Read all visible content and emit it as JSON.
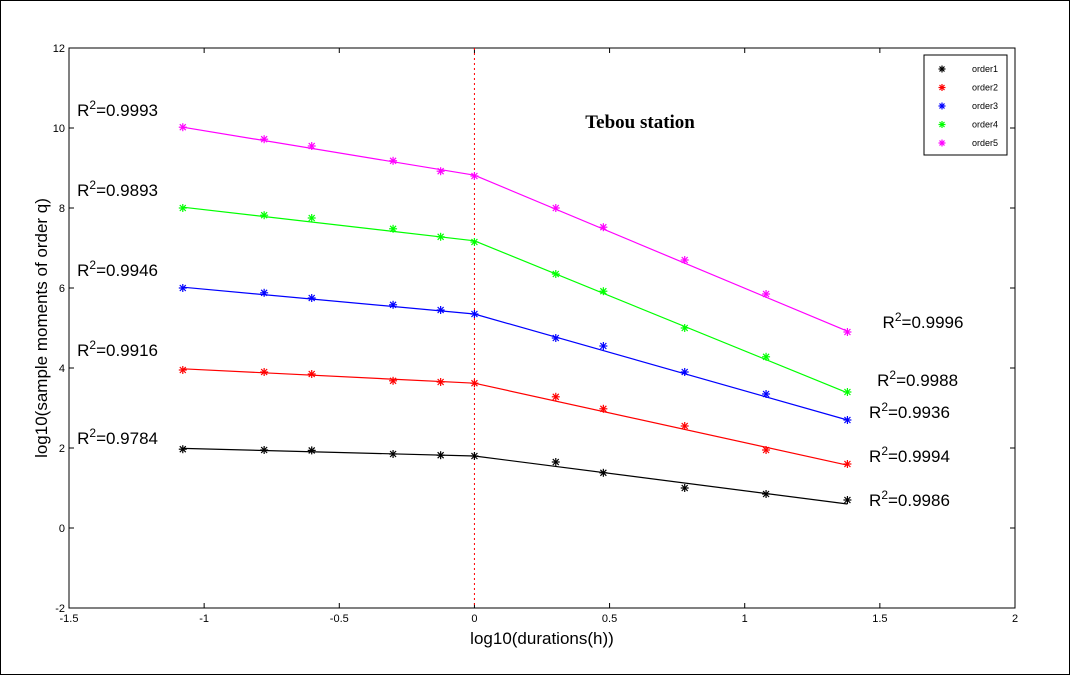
{
  "chart_data": {
    "type": "line",
    "title": "Tebou station",
    "xlabel": "log10(durations(h))",
    "ylabel": "log10(sample moments of order q)",
    "xlim": [
      -1.5,
      2
    ],
    "ylim": [
      -2,
      12
    ],
    "xticks": [
      -1.5,
      -1,
      -0.5,
      0,
      0.5,
      1,
      1.5,
      2
    ],
    "xtick_labels": [
      "-1.5",
      "-1",
      "-0.5",
      "0",
      "0.5",
      "1",
      "1.5",
      "2"
    ],
    "yticks": [
      -2,
      0,
      2,
      4,
      6,
      8,
      10,
      12
    ],
    "ytick_labels": [
      "-2",
      "0",
      "2",
      "4",
      "6",
      "8",
      "10",
      "12"
    ],
    "grid": false,
    "legend_position": "top-right",
    "vertical_reference_line_x": 0,
    "x": [
      -1.079,
      -0.778,
      -0.602,
      -0.301,
      -0.125,
      0,
      0.301,
      0.477,
      0.778,
      1.079,
      1.38
    ],
    "series": [
      {
        "name": "order1",
        "color": "#000000",
        "values": [
          1.97,
          1.95,
          1.94,
          1.85,
          1.82,
          1.8,
          1.65,
          1.38,
          1.0,
          0.85,
          0.7
        ],
        "fit_left": [
          1.99,
          1.8
        ],
        "fit_right": [
          1.8,
          0.6
        ]
      },
      {
        "name": "order2",
        "color": "#ff0000",
        "values": [
          3.95,
          3.9,
          3.85,
          3.68,
          3.65,
          3.62,
          3.28,
          2.98,
          2.55,
          1.95,
          1.6
        ],
        "fit_left": [
          3.98,
          3.62
        ],
        "fit_right": [
          3.62,
          1.57
        ]
      },
      {
        "name": "order3",
        "color": "#0000ff",
        "values": [
          6.0,
          5.88,
          5.75,
          5.58,
          5.45,
          5.35,
          4.75,
          4.55,
          3.9,
          3.35,
          2.7
        ],
        "fit_left": [
          6.02,
          5.35
        ],
        "fit_right": [
          5.35,
          2.7
        ]
      },
      {
        "name": "order4",
        "color": "#00ff00",
        "values": [
          8.0,
          7.82,
          7.75,
          7.48,
          7.28,
          7.15,
          6.35,
          5.92,
          5.0,
          4.28,
          3.4
        ],
        "fit_left": [
          8.02,
          7.18
        ],
        "fit_right": [
          7.18,
          3.38
        ]
      },
      {
        "name": "order5",
        "color": "#ff00ff",
        "values": [
          10.02,
          9.72,
          9.55,
          9.18,
          8.92,
          8.8,
          8.0,
          7.52,
          6.7,
          5.85,
          4.9
        ],
        "fit_left": [
          10.02,
          8.82
        ],
        "fit_right": [
          8.82,
          4.92
        ]
      }
    ],
    "annotations": [
      {
        "text": "=0.9993",
        "x": -1.47,
        "y": 10.3
      },
      {
        "text": "=0.9893",
        "x": -1.47,
        "y": 8.3
      },
      {
        "text": "=0.9946",
        "x": -1.47,
        "y": 6.3
      },
      {
        "text": "=0.9916",
        "x": -1.47,
        "y": 4.3
      },
      {
        "text": "=0.9784",
        "x": -1.47,
        "y": 2.1
      },
      {
        "text": "=0.9996",
        "x": 1.51,
        "y": 5.0
      },
      {
        "text": "=0.9988",
        "x": 1.49,
        "y": 3.55
      },
      {
        "text": "=0.9936",
        "x": 1.46,
        "y": 2.75
      },
      {
        "text": "=0.9994",
        "x": 1.46,
        "y": 1.65
      },
      {
        "text": "=0.9986",
        "x": 1.46,
        "y": 0.55
      }
    ],
    "annotation_prefix": "R",
    "annotation_exponent": "2"
  }
}
